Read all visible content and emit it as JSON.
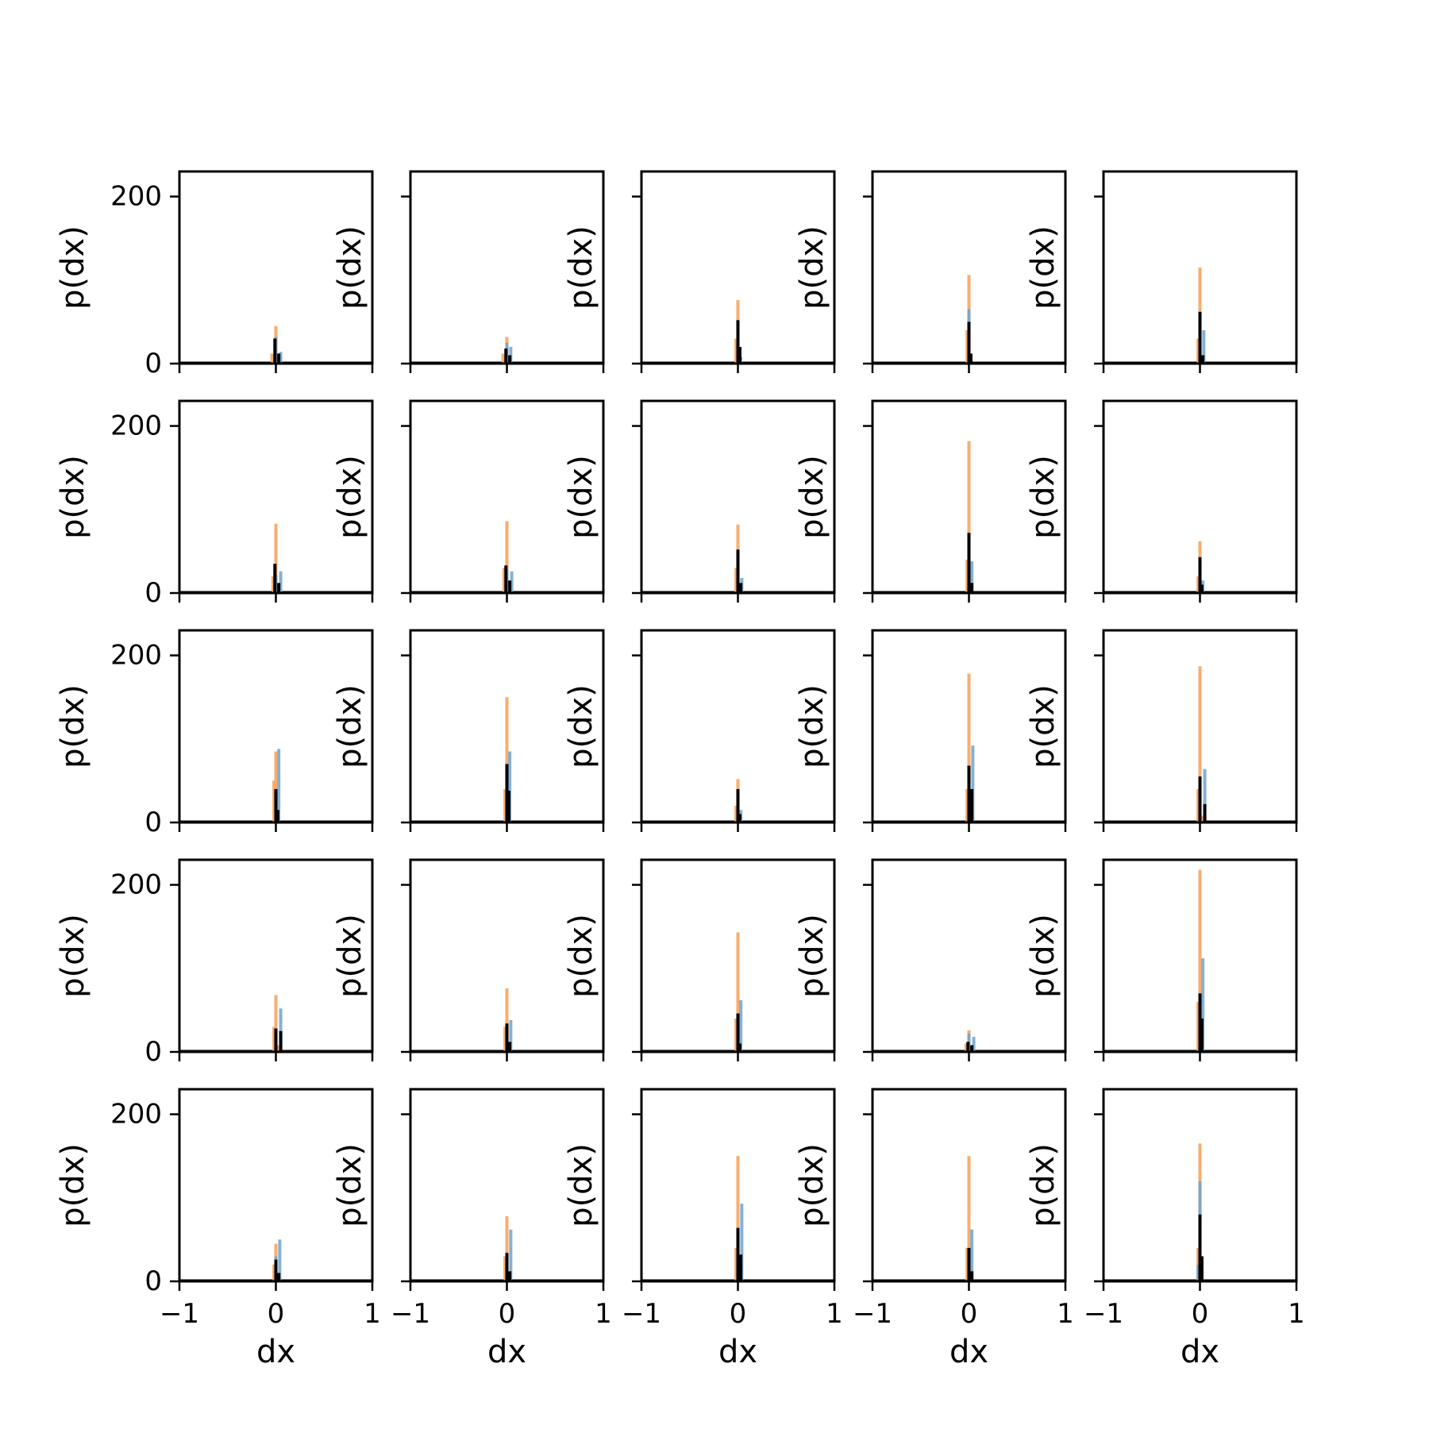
{
  "chart_data": {
    "type": "bar",
    "layout": "5x5 grid of histograms, shared x and y axes",
    "xlabel": "dx",
    "ylabel": "p(dx)",
    "xlim": [
      -1,
      1
    ],
    "ylim": [
      0,
      230
    ],
    "xticks": [
      -1,
      0,
      1
    ],
    "xtick_labels": [
      "−1",
      "0",
      "1"
    ],
    "yticks": [
      0,
      200
    ],
    "ytick_labels": [
      "0",
      "200"
    ],
    "grid": false,
    "colors": {
      "series_orange": "#f8a45c",
      "series_blue": "#6fa3cc",
      "series_black": "#000000"
    },
    "panels": [
      {
        "orange": [
          [
            -0.04,
            12
          ],
          [
            0.0,
            45
          ],
          [
            0.03,
            8
          ]
        ],
        "blue": [
          [
            0.0,
            32
          ],
          [
            0.05,
            14
          ]
        ],
        "black": [
          [
            -0.01,
            30
          ],
          [
            0.03,
            12
          ]
        ]
      },
      {
        "orange": [
          [
            -0.04,
            12
          ],
          [
            0.0,
            32
          ],
          [
            0.03,
            10
          ]
        ],
        "blue": [
          [
            0.0,
            25
          ],
          [
            0.04,
            20
          ]
        ],
        "black": [
          [
            -0.01,
            18
          ],
          [
            0.03,
            10
          ]
        ]
      },
      {
        "orange": [
          [
            -0.02,
            30
          ],
          [
            0.0,
            76
          ],
          [
            0.02,
            10
          ]
        ],
        "blue": [
          [
            0.0,
            50
          ],
          [
            0.03,
            8
          ]
        ],
        "black": [
          [
            0.0,
            52
          ],
          [
            0.02,
            20
          ]
        ]
      },
      {
        "orange": [
          [
            -0.02,
            40
          ],
          [
            0.0,
            106
          ],
          [
            0.02,
            8
          ]
        ],
        "blue": [
          [
            0.0,
            65
          ],
          [
            0.02,
            10
          ]
        ],
        "black": [
          [
            0.0,
            50
          ],
          [
            0.02,
            12
          ]
        ]
      },
      {
        "orange": [
          [
            -0.02,
            30
          ],
          [
            0.0,
            115
          ],
          [
            0.02,
            8
          ]
        ],
        "blue": [
          [
            0.0,
            30
          ],
          [
            0.04,
            40
          ]
        ],
        "black": [
          [
            0.0,
            62
          ],
          [
            0.03,
            10
          ]
        ]
      },
      {
        "orange": [
          [
            -0.03,
            20
          ],
          [
            0.0,
            83
          ],
          [
            0.02,
            8
          ]
        ],
        "blue": [
          [
            0.0,
            22
          ],
          [
            0.05,
            26
          ]
        ],
        "black": [
          [
            -0.01,
            35
          ],
          [
            0.03,
            12
          ]
        ]
      },
      {
        "orange": [
          [
            -0.03,
            30
          ],
          [
            0.0,
            86
          ],
          [
            0.02,
            8
          ]
        ],
        "blue": [
          [
            0.0,
            28
          ],
          [
            0.05,
            26
          ]
        ],
        "black": [
          [
            -0.01,
            33
          ],
          [
            0.03,
            15
          ]
        ]
      },
      {
        "orange": [
          [
            -0.02,
            30
          ],
          [
            0.0,
            82
          ],
          [
            0.02,
            8
          ]
        ],
        "blue": [
          [
            0.0,
            32
          ],
          [
            0.04,
            18
          ]
        ],
        "black": [
          [
            0.0,
            52
          ],
          [
            0.03,
            12
          ]
        ]
      },
      {
        "orange": [
          [
            -0.02,
            40
          ],
          [
            0.0,
            182
          ],
          [
            0.02,
            8
          ]
        ],
        "blue": [
          [
            0.0,
            28
          ],
          [
            0.03,
            38
          ]
        ],
        "black": [
          [
            0.0,
            72
          ],
          [
            0.03,
            12
          ]
        ]
      },
      {
        "orange": [
          [
            -0.02,
            20
          ],
          [
            0.0,
            62
          ],
          [
            0.02,
            8
          ]
        ],
        "blue": [
          [
            0.0,
            30
          ],
          [
            0.03,
            15
          ]
        ],
        "black": [
          [
            0.0,
            43
          ],
          [
            0.02,
            10
          ]
        ]
      },
      {
        "orange": [
          [
            -0.02,
            50
          ],
          [
            0.0,
            85
          ],
          [
            0.02,
            10
          ]
        ],
        "blue": [
          [
            0.0,
            40
          ],
          [
            0.03,
            88
          ]
        ],
        "black": [
          [
            0.0,
            40
          ],
          [
            0.02,
            15
          ]
        ]
      },
      {
        "orange": [
          [
            -0.02,
            40
          ],
          [
            0.0,
            150
          ],
          [
            0.02,
            8
          ]
        ],
        "blue": [
          [
            0.0,
            40
          ],
          [
            0.03,
            85
          ]
        ],
        "black": [
          [
            0.0,
            70
          ],
          [
            0.02,
            38
          ]
        ]
      },
      {
        "orange": [
          [
            -0.02,
            20
          ],
          [
            0.0,
            52
          ],
          [
            0.02,
            8
          ]
        ],
        "blue": [
          [
            0.0,
            28
          ],
          [
            0.03,
            15
          ]
        ],
        "black": [
          [
            0.0,
            40
          ],
          [
            0.02,
            10
          ]
        ]
      },
      {
        "orange": [
          [
            -0.02,
            40
          ],
          [
            0.0,
            178
          ],
          [
            0.02,
            8
          ]
        ],
        "blue": [
          [
            0.0,
            40
          ],
          [
            0.04,
            92
          ]
        ],
        "black": [
          [
            0.0,
            68
          ],
          [
            0.03,
            40
          ]
        ]
      },
      {
        "orange": [
          [
            -0.02,
            40
          ],
          [
            0.0,
            187
          ],
          [
            0.02,
            8
          ]
        ],
        "blue": [
          [
            0.0,
            30
          ],
          [
            0.05,
            64
          ]
        ],
        "black": [
          [
            0.0,
            55
          ],
          [
            0.05,
            22
          ]
        ]
      },
      {
        "orange": [
          [
            -0.02,
            30
          ],
          [
            0.0,
            68
          ],
          [
            0.02,
            8
          ]
        ],
        "blue": [
          [
            0.0,
            22
          ],
          [
            0.05,
            52
          ]
        ],
        "black": [
          [
            0.0,
            28
          ],
          [
            0.05,
            25
          ]
        ]
      },
      {
        "orange": [
          [
            -0.02,
            30
          ],
          [
            0.0,
            76
          ],
          [
            0.02,
            8
          ]
        ],
        "blue": [
          [
            0.0,
            20
          ],
          [
            0.04,
            38
          ]
        ],
        "black": [
          [
            0.0,
            34
          ],
          [
            0.03,
            12
          ]
        ]
      },
      {
        "orange": [
          [
            -0.02,
            40
          ],
          [
            0.0,
            143
          ],
          [
            0.02,
            8
          ]
        ],
        "blue": [
          [
            0.0,
            40
          ],
          [
            0.03,
            62
          ]
        ],
        "black": [
          [
            0.0,
            46
          ],
          [
            0.02,
            10
          ]
        ]
      },
      {
        "orange": [
          [
            -0.03,
            10
          ],
          [
            0.0,
            26
          ],
          [
            0.03,
            8
          ]
        ],
        "blue": [
          [
            0.0,
            22
          ],
          [
            0.05,
            18
          ]
        ],
        "black": [
          [
            -0.01,
            12
          ],
          [
            0.03,
            8
          ]
        ]
      },
      {
        "orange": [
          [
            -0.02,
            60
          ],
          [
            0.0,
            218
          ],
          [
            0.02,
            8
          ]
        ],
        "blue": [
          [
            0.0,
            60
          ],
          [
            0.03,
            112
          ]
        ],
        "black": [
          [
            0.0,
            70
          ],
          [
            0.02,
            40
          ]
        ]
      },
      {
        "orange": [
          [
            -0.02,
            20
          ],
          [
            0.0,
            45
          ],
          [
            0.02,
            8
          ]
        ],
        "blue": [
          [
            0.0,
            30
          ],
          [
            0.04,
            50
          ]
        ],
        "black": [
          [
            0.0,
            26
          ],
          [
            0.03,
            10
          ]
        ]
      },
      {
        "orange": [
          [
            -0.02,
            30
          ],
          [
            0.0,
            78
          ],
          [
            0.02,
            8
          ]
        ],
        "blue": [
          [
            0.0,
            28
          ],
          [
            0.04,
            62
          ]
        ],
        "black": [
          [
            0.0,
            34
          ],
          [
            0.03,
            12
          ]
        ]
      },
      {
        "orange": [
          [
            -0.02,
            40
          ],
          [
            0.0,
            150
          ],
          [
            0.02,
            8
          ]
        ],
        "blue": [
          [
            0.0,
            40
          ],
          [
            0.04,
            93
          ]
        ],
        "black": [
          [
            0.0,
            64
          ],
          [
            0.03,
            32
          ]
        ]
      },
      {
        "orange": [
          [
            -0.02,
            40
          ],
          [
            0.0,
            150
          ],
          [
            0.02,
            8
          ]
        ],
        "blue": [
          [
            0.0,
            40
          ],
          [
            0.03,
            62
          ]
        ],
        "black": [
          [
            0.0,
            40
          ],
          [
            0.03,
            12
          ]
        ]
      },
      {
        "orange": [
          [
            -0.02,
            40
          ],
          [
            0.0,
            165
          ],
          [
            0.02,
            8
          ]
        ],
        "blue": [
          [
            -0.02,
            20
          ],
          [
            0.0,
            120
          ]
        ],
        "black": [
          [
            0.0,
            80
          ],
          [
            0.02,
            30
          ]
        ]
      }
    ]
  }
}
